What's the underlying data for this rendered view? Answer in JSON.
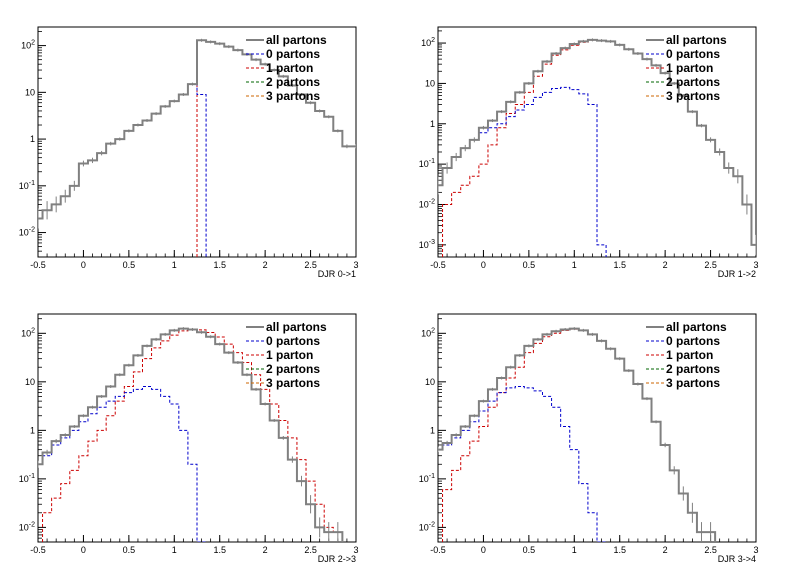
{
  "legend_entries": [
    "all partons",
    "0 partons",
    "1 parton",
    "2 partons",
    "3 partons"
  ],
  "series_colors": {
    "all partons": "#808080",
    "0 partons": "#0000cc",
    "1 parton": "#cc0000",
    "2 partons": "#006600",
    "3 partons": "#cc6600"
  },
  "chart_data": [
    {
      "type": "line",
      "panel": "top-left",
      "title": "",
      "xlabel": "DJR 0->1",
      "ylabel": "",
      "xlim": [
        -0.5,
        3
      ],
      "ylim": [
        0.003,
        250
      ],
      "yscale": "log",
      "x_ticks": [
        "-0.5",
        "0",
        "0.5",
        "1",
        "1.5",
        "2",
        "2.5",
        "3"
      ],
      "y_ticks": [
        {
          "value": 0.01,
          "label": "10^-2"
        },
        {
          "value": 0.1,
          "label": "10^-1"
        },
        {
          "value": 1,
          "label": "1"
        },
        {
          "value": 10,
          "label": "10"
        },
        {
          "value": 100,
          "label": "10^2"
        }
      ],
      "legend": "top-right",
      "grid": false,
      "series": [
        {
          "name": "all partons",
          "x": [
            -0.5,
            -0.4,
            -0.3,
            -0.2,
            -0.1,
            0,
            0.1,
            0.2,
            0.3,
            0.4,
            0.5,
            0.6,
            0.7,
            0.8,
            0.9,
            1.0,
            1.1,
            1.2,
            1.3,
            1.4,
            1.5,
            1.6,
            1.7,
            1.8,
            1.9,
            2.0,
            2.1,
            2.2,
            2.3,
            2.4,
            2.5,
            2.6,
            2.7,
            2.8,
            2.9,
            3.0
          ],
          "y": [
            0.02,
            0.03,
            0.04,
            0.06,
            0.1,
            0.3,
            0.35,
            0.5,
            0.8,
            1.0,
            1.5,
            2.0,
            2.5,
            3.5,
            5.0,
            6.5,
            9.0,
            15,
            130,
            120,
            110,
            95,
            80,
            65,
            50,
            40,
            30,
            22,
            14,
            9,
            6,
            4,
            3,
            1.5,
            0.7,
            0.7
          ]
        },
        {
          "name": "0 partons",
          "x": [
            -0.5,
            -0.4,
            -0.3,
            -0.2,
            -0.1,
            0,
            0.1,
            0.2,
            0.3,
            0.4,
            0.5,
            0.6,
            0.7,
            0.8,
            0.9,
            1.0,
            1.1,
            1.2,
            1.3
          ],
          "y": [
            0.02,
            0.03,
            0.04,
            0.06,
            0.1,
            0.3,
            0.35,
            0.5,
            0.8,
            1.0,
            1.5,
            2.0,
            2.5,
            3.5,
            5.0,
            6.5,
            9.0,
            15,
            9
          ]
        },
        {
          "name": "1 parton",
          "x": [
            1.3,
            1.4,
            1.5,
            1.6,
            1.7,
            1.8,
            1.9,
            2.0,
            2.1,
            2.2,
            2.3,
            2.4,
            2.5,
            2.6,
            2.7,
            2.8,
            2.9,
            3.0
          ],
          "y": [
            130,
            120,
            110,
            95,
            80,
            65,
            50,
            40,
            30,
            22,
            14,
            9,
            6,
            4,
            3,
            1.5,
            0.7,
            0.7
          ]
        },
        {
          "name": "2 partons",
          "x": [],
          "y": []
        },
        {
          "name": "3 partons",
          "x": [],
          "y": []
        }
      ]
    },
    {
      "type": "line",
      "panel": "top-right",
      "title": "",
      "xlabel": "DJR 1->2",
      "ylabel": "",
      "xlim": [
        -0.5,
        3
      ],
      "ylim": [
        0.0005,
        250
      ],
      "yscale": "log",
      "x_ticks": [
        "-0.5",
        "0",
        "0.5",
        "1",
        "1.5",
        "2",
        "2.5",
        "3"
      ],
      "y_ticks": [
        {
          "value": 0.001,
          "label": "10^-3"
        },
        {
          "value": 0.01,
          "label": "10^-2"
        },
        {
          "value": 0.1,
          "label": "10^-1"
        },
        {
          "value": 1,
          "label": "1"
        },
        {
          "value": 10,
          "label": "10"
        },
        {
          "value": 100,
          "label": "10^2"
        }
      ],
      "legend": "top-right",
      "grid": false,
      "series": [
        {
          "name": "all partons",
          "x": [
            -0.5,
            -0.4,
            -0.3,
            -0.2,
            -0.1,
            0,
            0.1,
            0.2,
            0.3,
            0.4,
            0.5,
            0.6,
            0.7,
            0.8,
            0.9,
            1.0,
            1.1,
            1.2,
            1.3,
            1.4,
            1.5,
            1.6,
            1.7,
            1.8,
            1.9,
            2.0,
            2.1,
            2.2,
            2.3,
            2.4,
            2.5,
            2.6,
            2.7,
            2.8,
            2.9,
            3.0
          ],
          "y": [
            0.03,
            0.08,
            0.15,
            0.25,
            0.4,
            0.8,
            1.2,
            2.0,
            3.5,
            6,
            10,
            20,
            35,
            55,
            75,
            95,
            110,
            120,
            115,
            110,
            90,
            70,
            55,
            40,
            28,
            18,
            10,
            5,
            2,
            0.9,
            0.4,
            0.2,
            0.08,
            0.05,
            0.01,
            0.001
          ]
        },
        {
          "name": "0 partons",
          "x": [
            -0.5,
            -0.4,
            -0.3,
            -0.2,
            -0.1,
            0,
            0.1,
            0.2,
            0.3,
            0.4,
            0.5,
            0.6,
            0.7,
            0.8,
            0.9,
            1.0,
            1.1,
            1.2,
            1.3
          ],
          "y": [
            0.03,
            0.08,
            0.15,
            0.25,
            0.4,
            0.6,
            0.8,
            1.0,
            1.5,
            2.2,
            3.0,
            4.5,
            6.0,
            7.5,
            8.0,
            7.0,
            5.5,
            3.0,
            0.001
          ]
        },
        {
          "name": "1 parton",
          "x": [
            -0.4,
            -0.3,
            -0.2,
            -0.1,
            0,
            0.1,
            0.2,
            0.3,
            0.4,
            0.5,
            0.6,
            0.7,
            0.8,
            0.9,
            1.0,
            1.1,
            1.2,
            1.3,
            1.4,
            1.5,
            1.6,
            1.7,
            1.8,
            1.9,
            2.0,
            2.1,
            2.2,
            2.3,
            2.4,
            2.5,
            2.6,
            2.7,
            2.8,
            2.9,
            3.0
          ],
          "y": [
            0.01,
            0.02,
            0.03,
            0.05,
            0.1,
            0.3,
            0.8,
            1.8,
            3.0,
            6.0,
            15,
            30,
            50,
            68,
            88,
            105,
            118,
            115,
            110,
            90,
            70,
            55,
            40,
            28,
            18,
            10,
            5,
            2,
            0.9,
            0.4,
            0.2,
            0.08,
            0.05,
            0.01,
            0.001
          ]
        },
        {
          "name": "2 partons",
          "x": [],
          "y": []
        },
        {
          "name": "3 partons",
          "x": [],
          "y": []
        }
      ]
    },
    {
      "type": "line",
      "panel": "bottom-left",
      "title": "",
      "xlabel": "DJR 2->3",
      "ylabel": "",
      "xlim": [
        -0.5,
        3
      ],
      "ylim": [
        0.005,
        250
      ],
      "yscale": "log",
      "x_ticks": [
        "-0.5",
        "0",
        "0.5",
        "1",
        "1.5",
        "2",
        "2.5",
        "3"
      ],
      "y_ticks": [
        {
          "value": 0.01,
          "label": "10^-2"
        },
        {
          "value": 0.1,
          "label": "10^-1"
        },
        {
          "value": 1,
          "label": "1"
        },
        {
          "value": 10,
          "label": "10"
        },
        {
          "value": 100,
          "label": "10^2"
        }
      ],
      "legend": "top-right",
      "grid": false,
      "series": [
        {
          "name": "all partons",
          "x": [
            -0.5,
            -0.4,
            -0.3,
            -0.2,
            -0.1,
            0,
            0.1,
            0.2,
            0.3,
            0.4,
            0.5,
            0.6,
            0.7,
            0.8,
            0.9,
            1.0,
            1.1,
            1.2,
            1.3,
            1.4,
            1.5,
            1.6,
            1.7,
            1.8,
            1.9,
            2.0,
            2.1,
            2.2,
            2.3,
            2.4,
            2.5,
            2.6,
            2.7,
            2.8
          ],
          "y": [
            0.2,
            0.35,
            0.6,
            0.8,
            1.2,
            2.0,
            3.0,
            5.0,
            8.0,
            14,
            22,
            35,
            55,
            75,
            95,
            115,
            125,
            120,
            105,
            85,
            60,
            40,
            25,
            14,
            7,
            3.5,
            1.6,
            0.7,
            0.25,
            0.09,
            0.03,
            0.01,
            0.008,
            0.008
          ]
        },
        {
          "name": "0 partons",
          "x": [
            -0.5,
            -0.4,
            -0.3,
            -0.2,
            -0.1,
            0,
            0.1,
            0.2,
            0.3,
            0.4,
            0.5,
            0.6,
            0.7,
            0.8,
            0.9,
            1.0,
            1.1,
            1.2,
            1.3
          ],
          "y": [
            0.2,
            0.3,
            0.5,
            0.7,
            1.0,
            1.5,
            2.2,
            3.0,
            4.0,
            5.0,
            6.0,
            7.0,
            8.0,
            7.0,
            5.0,
            3.5,
            1.0,
            0.2,
            0.005
          ]
        },
        {
          "name": "1 parton",
          "x": [
            -0.4,
            -0.3,
            -0.2,
            -0.1,
            0,
            0.1,
            0.2,
            0.3,
            0.4,
            0.5,
            0.6,
            0.7,
            0.8,
            0.9,
            1.0,
            1.1,
            1.2,
            1.3,
            1.4,
            1.5,
            1.6,
            1.7,
            1.8,
            1.9,
            2.0,
            2.1,
            2.2,
            2.3,
            2.4,
            2.5,
            2.6,
            2.7,
            2.8
          ],
          "y": [
            0.02,
            0.04,
            0.08,
            0.15,
            0.3,
            0.6,
            1.0,
            2.0,
            4.0,
            8.0,
            16,
            30,
            50,
            70,
            92,
            112,
            122,
            118,
            104,
            84,
            60,
            40,
            25,
            14,
            7,
            3.5,
            1.6,
            0.7,
            0.25,
            0.09,
            0.03,
            0.01,
            0.008
          ]
        },
        {
          "name": "2 partons",
          "x": [],
          "y": []
        },
        {
          "name": "3 partons",
          "x": [],
          "y": []
        }
      ]
    },
    {
      "type": "line",
      "panel": "bottom-right",
      "title": "",
      "xlabel": "DJR 3->4",
      "ylabel": "",
      "xlim": [
        -0.5,
        3
      ],
      "ylim": [
        0.005,
        250
      ],
      "yscale": "log",
      "x_ticks": [
        "-0.5",
        "0",
        "0.5",
        "1",
        "1.5",
        "2",
        "2.5",
        "3"
      ],
      "y_ticks": [
        {
          "value": 0.01,
          "label": "10^-2"
        },
        {
          "value": 0.1,
          "label": "10^-1"
        },
        {
          "value": 1,
          "label": "1"
        },
        {
          "value": 10,
          "label": "10"
        },
        {
          "value": 100,
          "label": "10^2"
        }
      ],
      "legend": "top-right",
      "grid": false,
      "series": [
        {
          "name": "all partons",
          "x": [
            -0.5,
            -0.4,
            -0.3,
            -0.2,
            -0.1,
            0,
            0.1,
            0.2,
            0.3,
            0.4,
            0.5,
            0.6,
            0.7,
            0.8,
            0.9,
            1.0,
            1.1,
            1.2,
            1.3,
            1.4,
            1.5,
            1.6,
            1.7,
            1.8,
            1.9,
            2.0,
            2.1,
            2.2,
            2.3,
            2.4,
            2.5
          ],
          "y": [
            0.4,
            0.55,
            0.8,
            1.2,
            2.0,
            4.0,
            7.0,
            12,
            20,
            35,
            55,
            75,
            95,
            110,
            120,
            125,
            115,
            95,
            70,
            48,
            30,
            17,
            9,
            4.5,
            1.5,
            0.5,
            0.15,
            0.05,
            0.02,
            0.008,
            0.008
          ]
        },
        {
          "name": "0 partons",
          "x": [
            -0.5,
            -0.4,
            -0.3,
            -0.2,
            -0.1,
            0,
            0.1,
            0.2,
            0.3,
            0.4,
            0.5,
            0.6,
            0.7,
            0.8,
            0.9,
            1.0,
            1.1,
            1.2,
            1.3
          ],
          "y": [
            0.4,
            0.5,
            0.7,
            1.0,
            1.5,
            2.5,
            4.0,
            6.0,
            7.5,
            8.0,
            7.5,
            6.5,
            5.0,
            3.0,
            1.2,
            0.4,
            0.08,
            0.02,
            0.005
          ]
        },
        {
          "name": "1 parton",
          "x": [
            -0.4,
            -0.3,
            -0.2,
            -0.1,
            0,
            0.1,
            0.2,
            0.3,
            0.4,
            0.5,
            0.6,
            0.7,
            0.8,
            0.9,
            1.0,
            1.1,
            1.2,
            1.3,
            1.4,
            1.5,
            1.6,
            1.7,
            1.8,
            1.9,
            2.0,
            2.1,
            2.2,
            2.3,
            2.4,
            2.5
          ],
          "y": [
            0.06,
            0.15,
            0.3,
            0.6,
            1.2,
            3.0,
            6.0,
            12,
            20,
            40,
            62,
            85,
            100,
            115,
            122,
            115,
            95,
            70,
            48,
            30,
            17,
            9,
            4.5,
            1.5,
            0.5,
            0.15,
            0.05,
            0.02,
            0.008,
            0.008
          ]
        },
        {
          "name": "2 partons",
          "x": [],
          "y": []
        },
        {
          "name": "3 partons",
          "x": [],
          "y": []
        }
      ]
    }
  ]
}
